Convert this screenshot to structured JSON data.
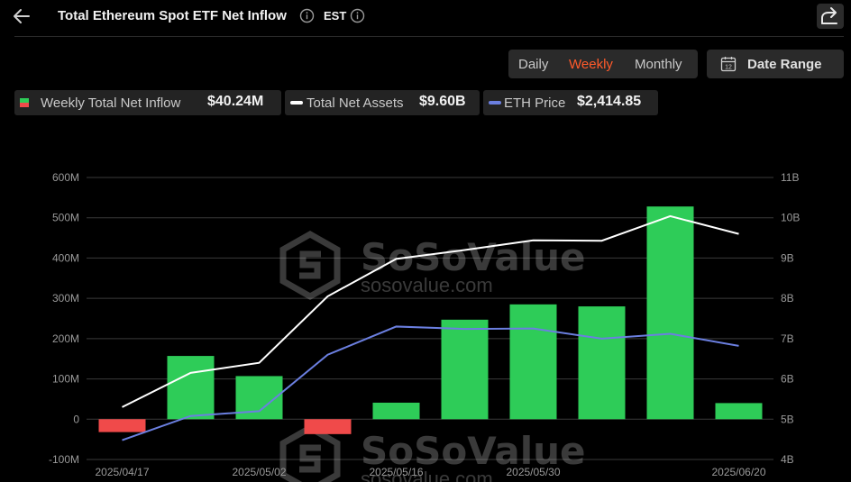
{
  "header": {
    "title": "Total Ethereum Spot ETF Net Inflow",
    "timezone": "EST"
  },
  "period_tabs": [
    {
      "label": "Daily",
      "active": false
    },
    {
      "label": "Weekly",
      "active": true
    },
    {
      "label": "Monthly",
      "active": false
    }
  ],
  "date_range": {
    "label": "Date Range",
    "icon_number": "12"
  },
  "summary": {
    "inflow": {
      "label": "Weekly Total Net Inflow",
      "value": "$40.24M"
    },
    "assets": {
      "label": "Total Net Assets",
      "value": "$9.60B"
    },
    "price": {
      "label": "ETH Price",
      "value": "$2,414.85"
    }
  },
  "colors": {
    "positive": "#2ecc58",
    "negative": "#f04a4a",
    "assets_line": "#ffffff",
    "price_line": "#6b7fe0",
    "accent": "#ff5a2a"
  },
  "watermark": {
    "brand": "SoSoValue",
    "url": "sosovalue.com"
  },
  "chart_data": {
    "type": "bar",
    "x_tick_labels": [
      "2025/04/17",
      "2025/05/02",
      "2025/05/16",
      "2025/05/30",
      "2025/06/20"
    ],
    "left_axis": {
      "ticks": [
        "600M",
        "500M",
        "400M",
        "300M",
        "200M",
        "100M",
        "0",
        "-100M"
      ],
      "ylim": [
        -100,
        600
      ],
      "unit": "M"
    },
    "right_axis": {
      "ticks": [
        "11B",
        "10B",
        "9B",
        "8B",
        "7B",
        "6B",
        "5B",
        "4B"
      ],
      "ylim": [
        4,
        11
      ],
      "unit": "B"
    },
    "weekly_net_inflow_M": [
      -32,
      157,
      107,
      -37,
      41,
      247,
      285,
      280,
      528,
      40
    ],
    "total_net_assets_B": [
      5.3,
      6.15,
      6.4,
      8.05,
      8.98,
      9.2,
      9.44,
      9.43,
      10.04,
      9.6
    ],
    "eth_price_B_scale": [
      4.48,
      5.08,
      5.2,
      6.6,
      7.3,
      7.24,
      7.25,
      7.0,
      7.12,
      6.82
    ]
  }
}
